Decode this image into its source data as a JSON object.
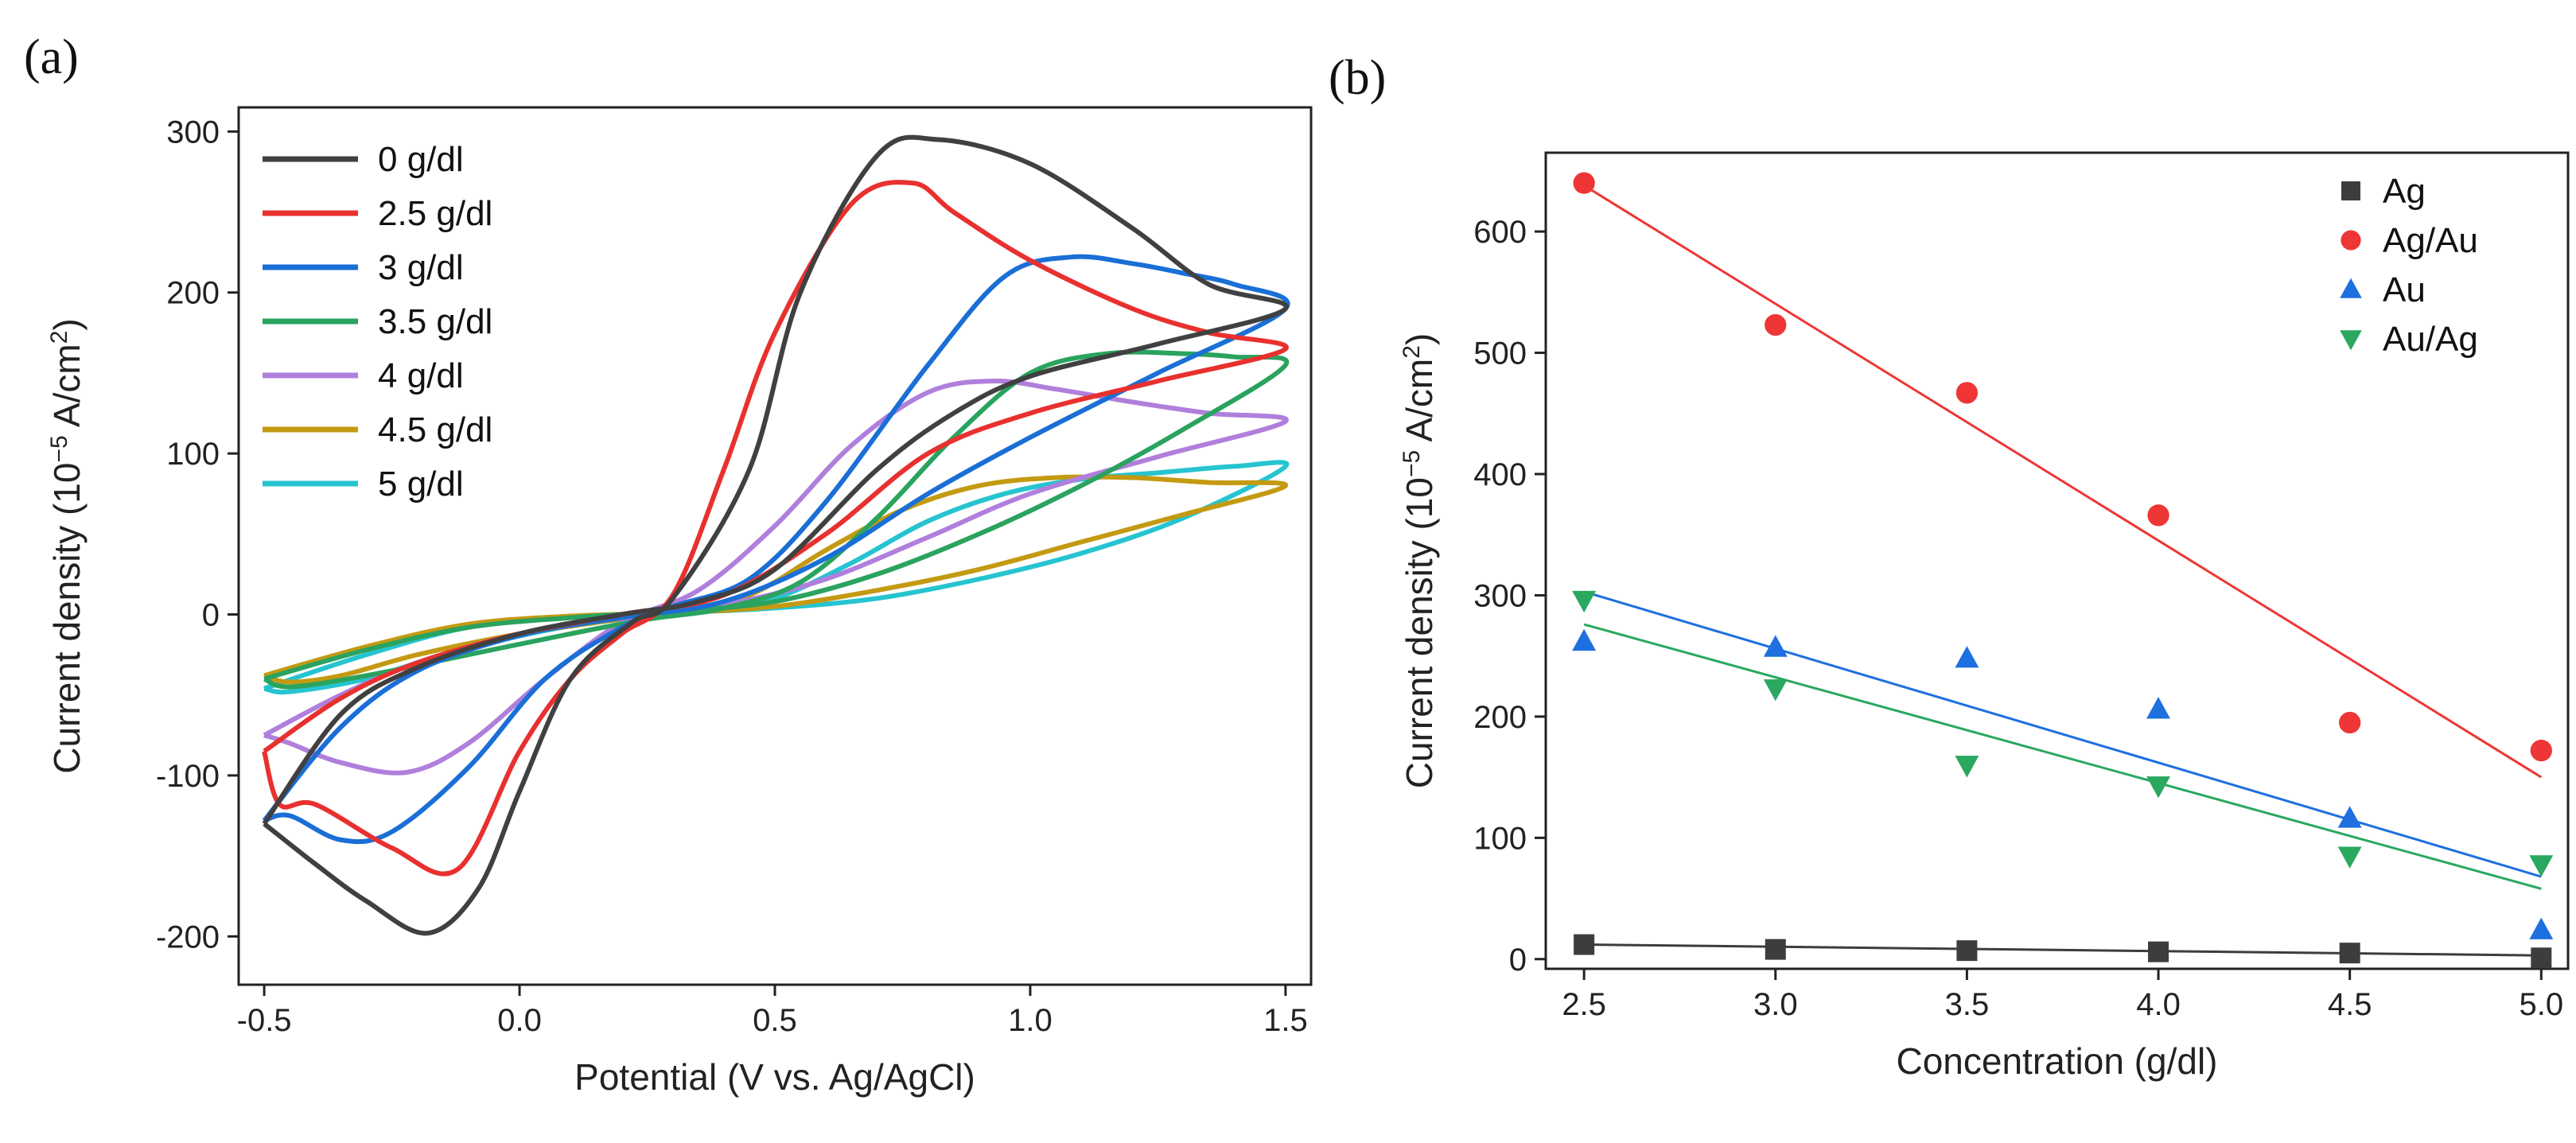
{
  "panels": {
    "a": "(a)",
    "b": "(b)"
  },
  "chart_data": [
    {
      "id": "a",
      "type": "line",
      "title": "",
      "xlabel": "Potential (V vs. Ag/AgCl)",
      "ylabel_pre": "Current density (10",
      "ylabel_sup1": "−5",
      "ylabel_mid": " A/cm",
      "ylabel_sup2": "2",
      "ylabel_post": ")",
      "xlim": [
        -0.55,
        1.55
      ],
      "ylim": [
        -230,
        315
      ],
      "xticks": [
        "-0.5",
        "0.0",
        "0.5",
        "1.0",
        "1.5"
      ],
      "xtick_values": [
        -0.5,
        0.0,
        0.5,
        1.0,
        1.5
      ],
      "yticks": [
        "-200",
        "-100",
        "0",
        "100",
        "200",
        "300"
      ],
      "ytick_values": [
        -200,
        -100,
        0,
        100,
        200,
        300
      ],
      "legend_position": "top-left",
      "series": [
        {
          "name": "0 g/dl",
          "color": "#404040",
          "forward": [
            [
              -0.5,
              -130
            ],
            [
              -0.35,
              -62
            ],
            [
              -0.2,
              -33
            ],
            [
              0,
              -12
            ],
            [
              0.2,
              0
            ],
            [
              0.35,
              8
            ],
            [
              0.5,
              28
            ],
            [
              0.7,
              90
            ],
            [
              0.85,
              125
            ],
            [
              1.0,
              148
            ],
            [
              1.25,
              168
            ],
            [
              1.5,
              190
            ]
          ],
          "reverse": [
            [
              1.5,
              190
            ],
            [
              1.35,
              205
            ],
            [
              1.2,
              240
            ],
            [
              1.0,
              280
            ],
            [
              0.82,
              295
            ],
            [
              0.7,
              285
            ],
            [
              0.55,
              200
            ],
            [
              0.45,
              90
            ],
            [
              0.3,
              10
            ],
            [
              0.22,
              -5
            ],
            [
              0.1,
              -40
            ],
            [
              0,
              -110
            ],
            [
              -0.08,
              -170
            ],
            [
              -0.18,
              -198
            ],
            [
              -0.3,
              -178
            ],
            [
              -0.4,
              -155
            ],
            [
              -0.5,
              -130
            ]
          ]
        },
        {
          "name": "2.5 g/dl",
          "color": "#e8312f",
          "forward": [
            [
              -0.5,
              -85
            ],
            [
              -0.35,
              -52
            ],
            [
              -0.2,
              -30
            ],
            [
              0,
              -12
            ],
            [
              0.2,
              0
            ],
            [
              0.4,
              12
            ],
            [
              0.6,
              50
            ],
            [
              0.8,
              100
            ],
            [
              1.0,
              125
            ],
            [
              1.25,
              145
            ],
            [
              1.5,
              165
            ]
          ],
          "reverse": [
            [
              1.5,
              165
            ],
            [
              1.35,
              175
            ],
            [
              1.2,
              190
            ],
            [
              1.0,
              220
            ],
            [
              0.85,
              250
            ],
            [
              0.77,
              268
            ],
            [
              0.65,
              255
            ],
            [
              0.5,
              175
            ],
            [
              0.4,
              90
            ],
            [
              0.3,
              12
            ],
            [
              0.2,
              -12
            ],
            [
              0.1,
              -40
            ],
            [
              0,
              -85
            ],
            [
              -0.12,
              -158
            ],
            [
              -0.25,
              -145
            ],
            [
              -0.4,
              -118
            ],
            [
              -0.47,
              -118
            ],
            [
              -0.5,
              -85
            ]
          ]
        },
        {
          "name": "3 g/dl",
          "color": "#1a6fd6",
          "forward": [
            [
              -0.5,
              -128
            ],
            [
              -0.35,
              -70
            ],
            [
              -0.2,
              -35
            ],
            [
              0,
              -13
            ],
            [
              0.2,
              -2
            ],
            [
              0.4,
              8
            ],
            [
              0.6,
              35
            ],
            [
              0.8,
              75
            ],
            [
              1.0,
              110
            ],
            [
              1.25,
              150
            ],
            [
              1.5,
              190
            ]
          ],
          "reverse": [
            [
              1.5,
              190
            ],
            [
              1.4,
              205
            ],
            [
              1.3,
              212
            ],
            [
              1.2,
              218
            ],
            [
              1.08,
              222
            ],
            [
              0.95,
              210
            ],
            [
              0.8,
              155
            ],
            [
              0.6,
              70
            ],
            [
              0.45,
              22
            ],
            [
              0.3,
              5
            ],
            [
              0.2,
              -8
            ],
            [
              0.05,
              -40
            ],
            [
              -0.1,
              -95
            ],
            [
              -0.25,
              -135
            ],
            [
              -0.35,
              -140
            ],
            [
              -0.45,
              -125
            ],
            [
              -0.5,
              -128
            ]
          ]
        },
        {
          "name": "3.5 g/dl",
          "color": "#2aa35f",
          "forward": [
            [
              -0.5,
              -40
            ],
            [
              -0.3,
              -22
            ],
            [
              -0.1,
              -8
            ],
            [
              0.1,
              -2
            ],
            [
              0.3,
              2
            ],
            [
              0.5,
              8
            ],
            [
              0.7,
              25
            ],
            [
              0.9,
              50
            ],
            [
              1.1,
              80
            ],
            [
              1.3,
              115
            ],
            [
              1.5,
              155
            ]
          ],
          "reverse": [
            [
              1.5,
              155
            ],
            [
              1.4,
              160
            ],
            [
              1.3,
              162
            ],
            [
              1.15,
              162
            ],
            [
              1.0,
              150
            ],
            [
              0.85,
              110
            ],
            [
              0.7,
              60
            ],
            [
              0.55,
              20
            ],
            [
              0.4,
              4
            ],
            [
              0.25,
              -3
            ],
            [
              0.1,
              -12
            ],
            [
              -0.1,
              -25
            ],
            [
              -0.3,
              -38
            ],
            [
              -0.45,
              -45
            ],
            [
              -0.5,
              -40
            ]
          ]
        },
        {
          "name": "4 g/dl",
          "color": "#b07fdc",
          "forward": [
            [
              -0.5,
              -75
            ],
            [
              -0.35,
              -50
            ],
            [
              -0.2,
              -30
            ],
            [
              0,
              -12
            ],
            [
              0.2,
              -2
            ],
            [
              0.4,
              6
            ],
            [
              0.6,
              22
            ],
            [
              0.8,
              48
            ],
            [
              1.0,
              75
            ],
            [
              1.25,
              98
            ],
            [
              1.5,
              120
            ]
          ],
          "reverse": [
            [
              1.5,
              120
            ],
            [
              1.35,
              125
            ],
            [
              1.2,
              132
            ],
            [
              1.05,
              140
            ],
            [
              0.93,
              145
            ],
            [
              0.8,
              138
            ],
            [
              0.65,
              105
            ],
            [
              0.5,
              55
            ],
            [
              0.35,
              15
            ],
            [
              0.2,
              -5
            ],
            [
              0.05,
              -40
            ],
            [
              -0.1,
              -80
            ],
            [
              -0.22,
              -98
            ],
            [
              -0.35,
              -92
            ],
            [
              -0.45,
              -80
            ],
            [
              -0.5,
              -75
            ]
          ]
        },
        {
          "name": "4.5 g/dl",
          "color": "#c49a12",
          "forward": [
            [
              -0.5,
              -38
            ],
            [
              -0.3,
              -20
            ],
            [
              -0.1,
              -6
            ],
            [
              0.1,
              -1
            ],
            [
              0.3,
              1
            ],
            [
              0.5,
              5
            ],
            [
              0.7,
              15
            ],
            [
              0.9,
              28
            ],
            [
              1.1,
              45
            ],
            [
              1.3,
              62
            ],
            [
              1.5,
              80
            ]
          ],
          "reverse": [
            [
              1.5,
              80
            ],
            [
              1.35,
              82
            ],
            [
              1.2,
              85
            ],
            [
              1.05,
              85
            ],
            [
              0.9,
              80
            ],
            [
              0.75,
              65
            ],
            [
              0.6,
              40
            ],
            [
              0.45,
              12
            ],
            [
              0.3,
              2
            ],
            [
              0.15,
              -5
            ],
            [
              0,
              -12
            ],
            [
              -0.2,
              -25
            ],
            [
              -0.35,
              -38
            ],
            [
              -0.45,
              -42
            ],
            [
              -0.5,
              -38
            ]
          ]
        },
        {
          "name": "5 g/dl",
          "color": "#26c4d0",
          "forward": [
            [
              -0.5,
              -46
            ],
            [
              -0.3,
              -25
            ],
            [
              -0.1,
              -8
            ],
            [
              0.1,
              -2
            ],
            [
              0.3,
              1
            ],
            [
              0.5,
              4
            ],
            [
              0.7,
              10
            ],
            [
              0.9,
              22
            ],
            [
              1.1,
              38
            ],
            [
              1.3,
              60
            ],
            [
              1.5,
              92
            ]
          ],
          "reverse": [
            [
              1.5,
              92
            ],
            [
              1.4,
              92
            ],
            [
              1.25,
              88
            ],
            [
              1.1,
              84
            ],
            [
              0.95,
              75
            ],
            [
              0.8,
              58
            ],
            [
              0.65,
              32
            ],
            [
              0.5,
              10
            ],
            [
              0.35,
              1
            ],
            [
              0.2,
              -3
            ],
            [
              0.05,
              -10
            ],
            [
              -0.15,
              -25
            ],
            [
              -0.3,
              -40
            ],
            [
              -0.45,
              -48
            ],
            [
              -0.5,
              -46
            ]
          ]
        }
      ]
    },
    {
      "id": "b",
      "type": "scatter",
      "title": "",
      "xlabel": "Concentration (g/dl)",
      "ylabel_pre": "Current density (10",
      "ylabel_sup1": "−5",
      "ylabel_mid": " A/cm",
      "ylabel_sup2": "2",
      "ylabel_post": ")",
      "xlim": [
        2.4,
        5.07
      ],
      "ylim": [
        -8,
        665
      ],
      "xticks": [
        "2.5",
        "3.0",
        "3.5",
        "4.0",
        "4.5",
        "5.0"
      ],
      "xtick_values": [
        2.5,
        3.0,
        3.5,
        4.0,
        4.5,
        5.0
      ],
      "yticks": [
        "0",
        "100",
        "200",
        "300",
        "400",
        "500",
        "600"
      ],
      "ytick_values": [
        0,
        100,
        200,
        300,
        400,
        500,
        600
      ],
      "legend_position": "top-right",
      "x": [
        2.5,
        3.0,
        3.5,
        4.0,
        4.5,
        5.0
      ],
      "series": [
        {
          "name": "Ag",
          "color": "#3d3d3d",
          "marker": "square",
          "values": [
            12,
            8,
            7,
            6,
            5,
            1
          ],
          "fit": [
            12,
            3
          ]
        },
        {
          "name": "Ag/Au",
          "color": "#ee3636",
          "marker": "circle",
          "values": [
            640,
            523,
            467,
            366,
            195,
            172
          ],
          "fit": [
            638,
            150
          ]
        },
        {
          "name": "Au",
          "color": "#1e6fe0",
          "marker": "triangle-up",
          "values": [
            262,
            257,
            248,
            206,
            116,
            24
          ],
          "fit": [
            303,
            68
          ]
        },
        {
          "name": "Au/Ag",
          "color": "#2aa860",
          "marker": "triangle-down",
          "values": [
            296,
            223,
            160,
            143,
            85,
            78
          ],
          "fit": [
            276,
            58
          ]
        }
      ]
    }
  ]
}
